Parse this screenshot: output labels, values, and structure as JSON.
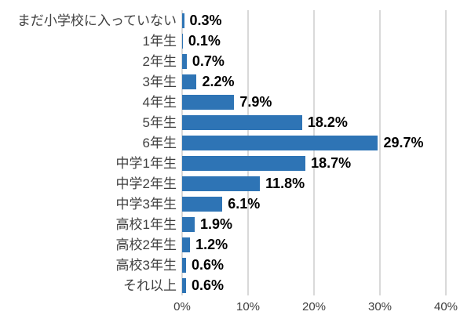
{
  "chart_data": {
    "type": "bar",
    "orientation": "horizontal",
    "title": "",
    "xlabel": "",
    "ylabel": "",
    "categories": [
      "まだ小学校に入っていない",
      "1年生",
      "2年生",
      "3年生",
      "4年生",
      "5年生",
      "6年生",
      "中学1年生",
      "中学2年生",
      "中学3年生",
      "高校1年生",
      "高校2年生",
      "高校3年生",
      "それ以上"
    ],
    "values": [
      0.3,
      0.1,
      0.7,
      2.2,
      7.9,
      18.2,
      29.7,
      18.7,
      11.8,
      6.1,
      1.9,
      1.2,
      0.6,
      0.6
    ],
    "value_labels": [
      "0.3%",
      "0.1%",
      "0.7%",
      "2.2%",
      "7.9%",
      "18.2%",
      "29.7%",
      "18.7%",
      "11.8%",
      "6.1%",
      "1.9%",
      "1.2%",
      "0.6%",
      "0.6%"
    ],
    "xlim": [
      0,
      40
    ],
    "x_ticks": [
      {
        "value": 0,
        "label": "0%"
      },
      {
        "value": 10,
        "label": "10%"
      },
      {
        "value": 20,
        "label": "20%"
      },
      {
        "value": 30,
        "label": "30%"
      },
      {
        "value": 40,
        "label": "40%"
      }
    ],
    "grid": "vertical-major",
    "legend": "none"
  },
  "style": {
    "background": "#FFFFFF",
    "bar_color": "#2E74B5",
    "gridline_color": "#D9D9D9",
    "category_label_color": "#404040",
    "value_label_color": "#000000",
    "tick_label_color": "#404040"
  }
}
